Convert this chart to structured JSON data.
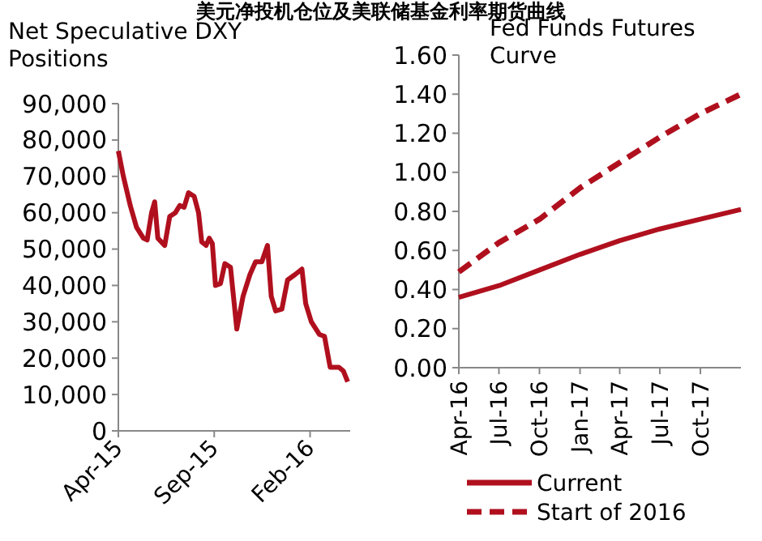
{
  "chart_data": [
    {
      "type": "line",
      "title": "Net Speculative DXY Positions",
      "annotations": [
        "美元净投机仓位及美联储基金利率期货曲线"
      ],
      "x": [
        "2015-04-01",
        "2015-04-09",
        "2015-04-20",
        "2015-04-30",
        "2015-05-11",
        "2015-05-17",
        "2015-05-24",
        "2015-05-29",
        "2015-06-03",
        "2015-06-14",
        "2015-06-22",
        "2015-07-01",
        "2015-07-08",
        "2015-07-15",
        "2015-07-22",
        "2015-07-31",
        "2015-08-07",
        "2015-08-12",
        "2015-08-19",
        "2015-08-24",
        "2015-08-29",
        "2015-09-03",
        "2015-09-11",
        "2015-09-18",
        "2015-09-27",
        "2015-10-07",
        "2015-10-17",
        "2015-10-28",
        "2015-11-06",
        "2015-11-16",
        "2015-11-25",
        "2015-12-01",
        "2015-12-08",
        "2015-12-18",
        "2015-12-27",
        "2016-01-08",
        "2016-01-19",
        "2016-01-25",
        "2016-02-03",
        "2016-02-16",
        "2016-02-24",
        "2016-03-04",
        "2016-03-18",
        "2016-03-25",
        "2016-04-01"
      ],
      "series": [
        {
          "color": "#b0101e",
          "values": [
            77000,
            70000,
            62000,
            56000,
            53000,
            52500,
            60000,
            63000,
            53000,
            51000,
            59000,
            60000,
            62000,
            61500,
            65500,
            64500,
            60000,
            52000,
            51000,
            53000,
            51500,
            40000,
            40500,
            46000,
            45000,
            28000,
            37000,
            43000,
            46500,
            46500,
            51000,
            37000,
            33000,
            33500,
            41500,
            43000,
            44500,
            35000,
            30000,
            26500,
            26000,
            17500,
            17500,
            16500,
            13500
          ]
        }
      ],
      "xlim": [
        "2015-04-01",
        "2016-04-05"
      ],
      "xticks": [
        {
          "value": "2015-04-01",
          "label": "Apr-15"
        },
        {
          "value": "2015-09-01",
          "label": "Sep-15"
        },
        {
          "value": "2016-02-01",
          "label": "Feb-16"
        }
      ],
      "ylim": [
        0,
        90000
      ],
      "yticks": [
        0,
        {
          "value": 10000,
          "label": "10,000"
        },
        {
          "value": 20000,
          "label": "20,000"
        },
        {
          "value": 30000,
          "label": "30,000"
        },
        {
          "value": 40000,
          "label": "40,000"
        },
        {
          "value": 50000,
          "label": "50,000"
        },
        {
          "value": 60000,
          "label": "60,000"
        },
        {
          "value": 70000,
          "label": "70,000"
        },
        {
          "value": 80000,
          "label": "80,000"
        },
        {
          "value": 90000,
          "label": "90,000"
        }
      ],
      "grid": false,
      "legend": false,
      "line_style": "solid"
    },
    {
      "type": "line",
      "title": "Fed Funds Futures Curve",
      "x": [
        "2016-04-01",
        "2016-07-01",
        "2016-10-01",
        "2017-01-01",
        "2017-04-01",
        "2017-07-01",
        "2017-10-01",
        "2018-01-01"
      ],
      "series": [
        {
          "name": "Current",
          "color": "#b0101e",
          "line_style": "solid",
          "values": [
            0.36,
            0.42,
            0.5,
            0.58,
            0.65,
            0.71,
            0.76,
            0.81
          ]
        },
        {
          "name": "Start of 2016",
          "color": "#b0101e",
          "line_style": "dashed",
          "values": [
            0.49,
            0.64,
            0.76,
            0.92,
            1.05,
            1.18,
            1.3,
            1.4
          ]
        }
      ],
      "xlim": [
        "2016-04-01",
        "2018-01-01"
      ],
      "xticks": [
        {
          "value": "2016-04-01",
          "label": "Apr-16"
        },
        {
          "value": "2016-07-01",
          "label": "Jul-16"
        },
        {
          "value": "2016-10-01",
          "label": "Oct-16"
        },
        {
          "value": "2017-01-01",
          "label": "Jan-17"
        },
        {
          "value": "2017-04-01",
          "label": "Apr-17"
        },
        {
          "value": "2017-07-01",
          "label": "Jul-17"
        },
        {
          "value": "2017-10-01",
          "label": "Oct-17"
        }
      ],
      "ylim": [
        0,
        1.6
      ],
      "yticks": [
        {
          "value": 0,
          "label": "0.00"
        },
        {
          "value": 0.2,
          "label": "0.20"
        },
        {
          "value": 0.4,
          "label": "0.40"
        },
        {
          "value": 0.6,
          "label": "0.60"
        },
        {
          "value": 0.8,
          "label": "0.80"
        },
        {
          "value": 1.0,
          "label": "1.00"
        },
        {
          "value": 1.2,
          "label": "1.20"
        },
        {
          "value": 1.4,
          "label": "1.40"
        },
        {
          "value": 1.6,
          "label": "1.60"
        }
      ],
      "grid": false,
      "legend": "bottom"
    }
  ]
}
